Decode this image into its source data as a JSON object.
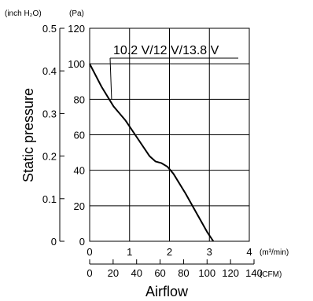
{
  "chart_data": {
    "type": "line",
    "xlabel": "Airflow",
    "ylabel": "Static pressure",
    "x_unit_primary": "(m³/min)",
    "x_unit_secondary": "(CFM)",
    "y_unit_primary": "(Pa)",
    "y_unit_secondary": "(inch H₂O)",
    "xlim": [
      0,
      4
    ],
    "ylim": [
      0,
      120
    ],
    "x_ticks": [
      "0",
      "1",
      "2",
      "3",
      "4"
    ],
    "y_ticks": [
      "0",
      "20",
      "40",
      "60",
      "80",
      "100",
      "120"
    ],
    "x2_ticks": [
      "0",
      "20",
      "40",
      "60",
      "80",
      "100",
      "120",
      "140"
    ],
    "y2_ticks": [
      "0",
      "0.1",
      "0.2",
      "0.3",
      "0.4",
      "0.5"
    ],
    "grid": true,
    "series": [
      {
        "name": "10.2 V/12 V/13.8 V",
        "x": [
          0,
          0.3,
          0.6,
          0.9,
          1.2,
          1.5,
          1.65,
          1.8,
          1.95,
          2.1,
          2.4,
          2.7,
          2.95,
          3.1
        ],
        "y": [
          100,
          87,
          76,
          68,
          58,
          48,
          45,
          44,
          42,
          38,
          27,
          15,
          5,
          0
        ]
      }
    ],
    "annotation": "10.2 V/12 V/13.8 V"
  }
}
